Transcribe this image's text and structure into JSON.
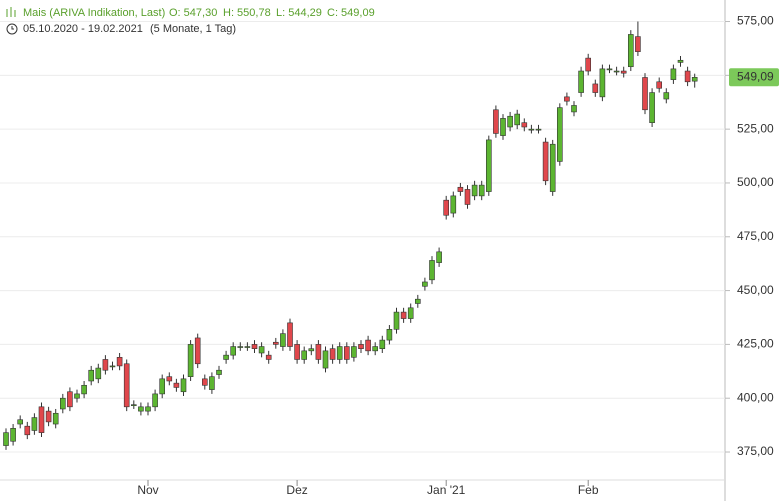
{
  "chart_data": {
    "type": "candlestick",
    "title": "Mais (ARIVA Indikation, Last)",
    "ohlc_labels": [
      "O: 547,30",
      "H: 550,78",
      "L: 544,29",
      "C: 549,09"
    ],
    "date_range": "05.10.2020 - 19.02.2021",
    "period": "(5 Monate, 1 Tag)",
    "up_color": "#5cb531",
    "down_color": "#e0474c",
    "grid": true,
    "ylim": [
      362,
      585
    ],
    "yticks": [
      {
        "value": 375,
        "label": "375,00"
      },
      {
        "value": 400,
        "label": "400,00"
      },
      {
        "value": 425,
        "label": "425,00"
      },
      {
        "value": 450,
        "label": "450,00"
      },
      {
        "value": 475,
        "label": "475,00"
      },
      {
        "value": 500,
        "label": "500,00"
      },
      {
        "value": 525,
        "label": "525,00"
      },
      {
        "value": 550,
        "label": "550,00"
      },
      {
        "value": 575,
        "label": "575,00"
      }
    ],
    "current_price": {
      "value": 549.09,
      "label": "549,09"
    },
    "categories": [
      null,
      null,
      null,
      null,
      null,
      null,
      null,
      null,
      null,
      null,
      null,
      null,
      null,
      null,
      null,
      null,
      null,
      null,
      null,
      null,
      "Nov",
      null,
      null,
      null,
      null,
      null,
      null,
      null,
      null,
      null,
      null,
      null,
      null,
      null,
      null,
      null,
      null,
      null,
      null,
      null,
      null,
      "Dez",
      null,
      null,
      null,
      null,
      null,
      null,
      null,
      null,
      null,
      null,
      null,
      null,
      null,
      null,
      null,
      null,
      null,
      null,
      null,
      null,
      "Jan '21",
      null,
      null,
      null,
      null,
      null,
      null,
      null,
      null,
      null,
      null,
      null,
      null,
      null,
      null,
      null,
      null,
      null,
      null,
      null,
      "Feb",
      null,
      null,
      null,
      null,
      null,
      null,
      null,
      null,
      null,
      null,
      null,
      null,
      null,
      null,
      null
    ],
    "open": [
      378,
      380,
      388,
      387,
      385,
      396,
      394,
      388,
      395,
      403,
      400,
      402,
      408,
      409,
      418,
      415,
      419,
      416,
      397,
      394,
      394,
      396,
      402,
      410,
      407,
      403,
      410,
      428,
      409,
      404,
      411,
      418,
      420,
      424,
      424,
      425,
      421,
      420,
      426,
      424,
      435,
      425,
      418,
      422,
      425,
      414,
      423,
      418,
      424,
      419,
      425,
      427,
      422,
      423,
      427,
      432,
      440,
      437,
      444,
      452,
      455,
      463,
      492,
      486,
      498,
      497,
      494,
      494,
      496,
      534,
      522,
      526,
      527,
      528,
      525,
      525,
      519,
      496,
      510,
      540,
      533,
      542,
      558,
      546,
      540,
      553,
      552,
      552,
      554,
      568,
      549,
      528,
      547,
      539,
      548,
      556,
      552,
      547.3
    ],
    "high": [
      386,
      388,
      392,
      389,
      393,
      398,
      396,
      395,
      402,
      405,
      404,
      408,
      415,
      416,
      420,
      417,
      421,
      418,
      399,
      398,
      398,
      404,
      411,
      412,
      409,
      411,
      427,
      430,
      411,
      412,
      415,
      422,
      426,
      426,
      426,
      427,
      426,
      422,
      428,
      432,
      437,
      427,
      424,
      425,
      427,
      424,
      425,
      426,
      426,
      426,
      427,
      429,
      426,
      429,
      434,
      442,
      442,
      444,
      448,
      456,
      466,
      470,
      494,
      496,
      500,
      499,
      501,
      501,
      522,
      536,
      532,
      533,
      534,
      530,
      527,
      527,
      521,
      520,
      537,
      542,
      538,
      554,
      560,
      548,
      555,
      555,
      554,
      554,
      571,
      575,
      551,
      544,
      549,
      544,
      555,
      559,
      554,
      550.78
    ],
    "low": [
      376,
      378,
      386,
      381,
      383,
      382,
      387,
      386,
      393,
      394,
      398,
      400,
      406,
      407,
      411,
      413,
      413,
      394,
      395,
      392,
      392,
      394,
      400,
      406,
      403,
      401,
      408,
      414,
      404,
      402,
      409,
      416,
      418,
      422,
      422,
      421,
      419,
      416,
      423,
      422,
      422,
      416,
      416,
      420,
      416,
      412,
      416,
      416,
      416,
      417,
      421,
      420,
      420,
      421,
      425,
      430,
      435,
      435,
      442,
      450,
      453,
      461,
      483,
      484,
      494,
      488,
      492,
      492,
      494,
      521,
      520,
      524,
      525,
      524,
      523,
      523,
      499,
      494,
      508,
      536,
      531,
      540,
      550,
      540,
      538,
      551,
      550,
      549,
      552,
      559,
      532,
      526,
      542,
      537,
      546,
      554,
      545,
      544.29
    ],
    "close": [
      384,
      386,
      390,
      383,
      391,
      384,
      389,
      393,
      400,
      396,
      402,
      406,
      413,
      414,
      413,
      415,
      415,
      396,
      397,
      396,
      396,
      402,
      409,
      408,
      405,
      409,
      425,
      416,
      406,
      410,
      413,
      420,
      424,
      424,
      424,
      423,
      424,
      418,
      425,
      430,
      424,
      418,
      422,
      423,
      418,
      422,
      418,
      424,
      418,
      424,
      423,
      422,
      424,
      427,
      432,
      440,
      437,
      442,
      446,
      454,
      464,
      468,
      485,
      494,
      496,
      490,
      499,
      499,
      520,
      523,
      530,
      531,
      532,
      526,
      525,
      525,
      501,
      518,
      535,
      538,
      536,
      552,
      552,
      542,
      553,
      553,
      552,
      551,
      569,
      561,
      534,
      542,
      544,
      542,
      553,
      557,
      547,
      549.09
    ]
  }
}
